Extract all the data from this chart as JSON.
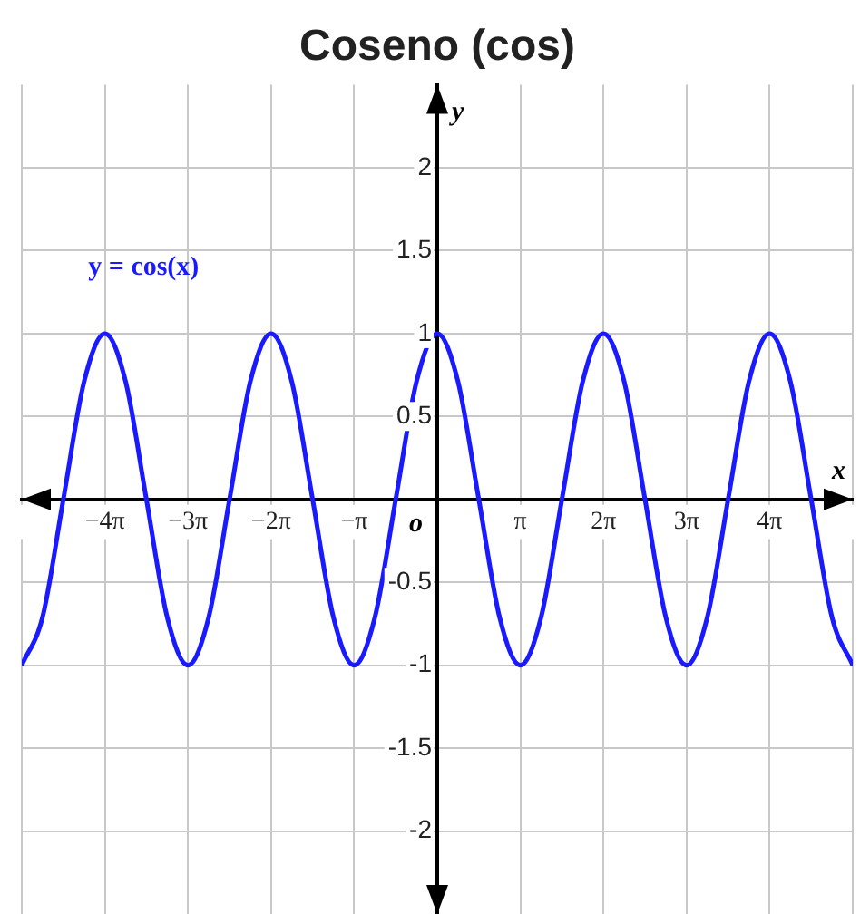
{
  "chart_data": {
    "type": "line",
    "title": "Coseno (cos)",
    "xlabel": "x",
    "ylabel": "y",
    "xlim": [
      -15.708,
      15.708
    ],
    "ylim": [
      -2.5,
      2.5
    ],
    "xticks": [
      {
        "value": -15.708,
        "label": null
      },
      {
        "value": -12.566,
        "label": "−4π"
      },
      {
        "value": -9.425,
        "label": "−3π"
      },
      {
        "value": -6.283,
        "label": "−2π"
      },
      {
        "value": -3.142,
        "label": "−π"
      },
      {
        "value": 3.142,
        "label": "π"
      },
      {
        "value": 6.283,
        "label": "2π"
      },
      {
        "value": 9.425,
        "label": "3π"
      },
      {
        "value": 12.566,
        "label": "4π"
      },
      {
        "value": 15.708,
        "label": null
      }
    ],
    "yticks": [
      -2,
      -1.5,
      -1,
      -0.5,
      0.5,
      1,
      1.5,
      2
    ],
    "grid": true,
    "annotations": [
      "o"
    ],
    "series": [
      {
        "name": "y = cos(x)",
        "color": "#1a1aff",
        "x": [
          -15.708,
          -14.923,
          -14.137,
          -13.352,
          -12.566,
          -11.781,
          -10.996,
          -10.21,
          -9.425,
          -8.639,
          -7.854,
          -7.069,
          -6.283,
          -5.498,
          -4.712,
          -3.927,
          -3.142,
          -2.356,
          -1.571,
          -0.785,
          0,
          0.785,
          1.571,
          2.356,
          3.142,
          3.927,
          4.712,
          5.498,
          6.283,
          7.069,
          7.854,
          8.639,
          9.425,
          10.21,
          10.996,
          11.781,
          12.566,
          13.352,
          14.137,
          14.923,
          15.708
        ],
        "values": [
          -1,
          -0.71,
          0,
          0.71,
          1,
          0.71,
          0,
          -0.71,
          -1,
          -0.71,
          0,
          0.71,
          1,
          0.71,
          0,
          -0.71,
          -1,
          -0.71,
          0,
          0.71,
          1,
          0.71,
          0,
          -0.71,
          -1,
          -0.71,
          0,
          0.71,
          1,
          0.71,
          0,
          -0.71,
          -1,
          -0.71,
          0,
          0.71,
          1,
          0.71,
          0,
          -0.71,
          -1
        ]
      }
    ]
  }
}
